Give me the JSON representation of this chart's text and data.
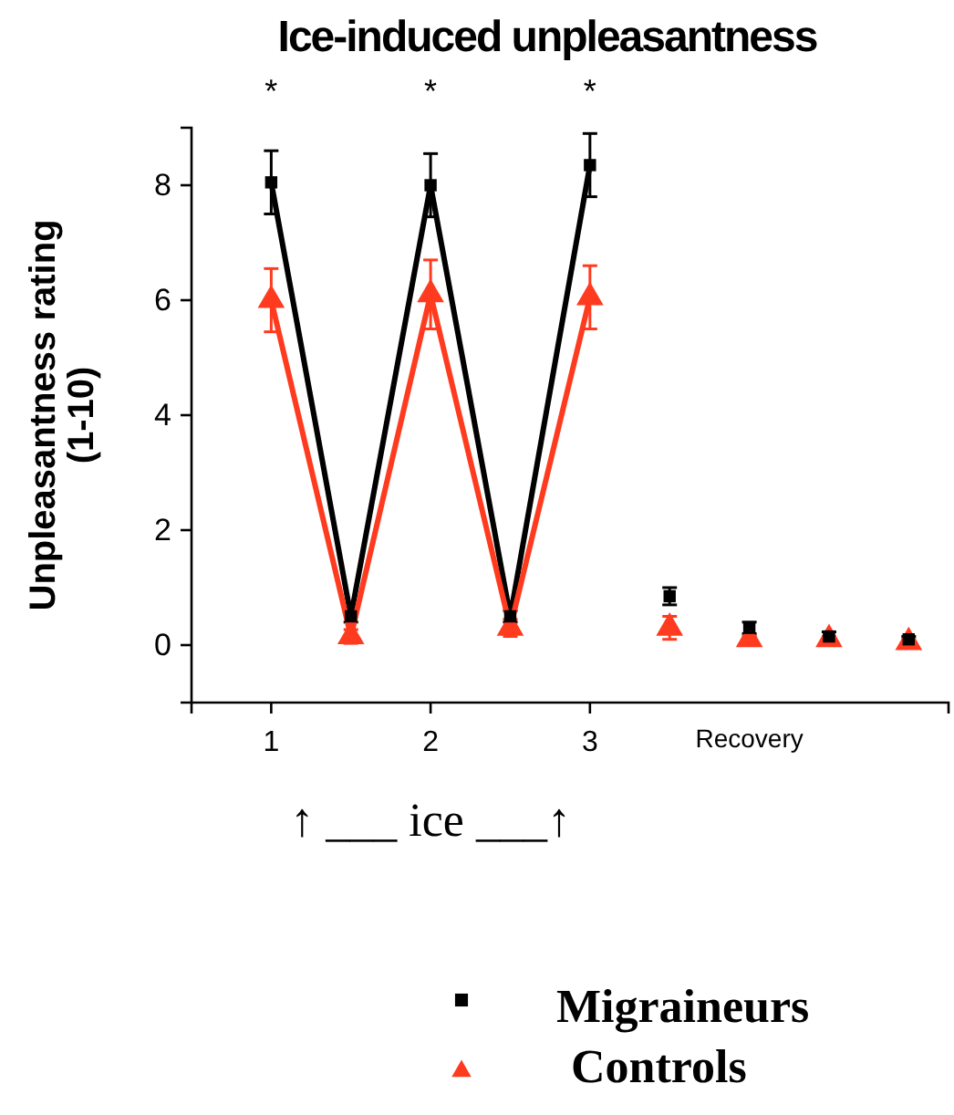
{
  "chart_data": {
    "type": "line",
    "title": "Ice-induced unpleasantness",
    "ylabel": "Unpleasantness rating\n(1-10)",
    "categories": [
      "1",
      null,
      "2",
      null,
      "3",
      null,
      "Recovery",
      null,
      null
    ],
    "ylim": [
      -1,
      9
    ],
    "yticks": [
      0,
      2,
      4,
      6,
      8
    ],
    "grid": false,
    "legend": "bottom",
    "line_style": "solid",
    "annotations": [
      "*",
      "*",
      "*",
      "↑ ___ ice ___↑"
    ],
    "series": [
      {
        "name": "Migraineurs",
        "color": "#000000",
        "marker": "square",
        "values": [
          8.05,
          0.5,
          8.0,
          0.5,
          8.35,
          null,
          null,
          null,
          null
        ],
        "errors": [
          0.55,
          0.1,
          0.55,
          0.1,
          0.55,
          null,
          null,
          null,
          null
        ]
      },
      {
        "name": "Controls",
        "color": "#ff3b1f",
        "marker": "triangle",
        "values": [
          6.0,
          0.15,
          6.1,
          0.3,
          6.05,
          null,
          null,
          null,
          null
        ],
        "errors": [
          0.55,
          0.12,
          0.6,
          0.15,
          0.55,
          null,
          null,
          null,
          null
        ]
      },
      {
        "type": "scatter",
        "color": "#000000",
        "marker": "square",
        "values": [
          null,
          null,
          null,
          null,
          null,
          0.85,
          0.3,
          0.15,
          0.1
        ],
        "errors": [
          null,
          null,
          null,
          null,
          null,
          0.15,
          0.1,
          0.08,
          0.05
        ]
      },
      {
        "type": "scatter",
        "color": "#ff3b1f",
        "marker": "triangle",
        "values": [
          null,
          null,
          null,
          null,
          null,
          0.3,
          0.1,
          0.1,
          0.05
        ],
        "errors": [
          null,
          null,
          null,
          null,
          null,
          0.2,
          0.05,
          0.05,
          0.05
        ]
      }
    ]
  }
}
